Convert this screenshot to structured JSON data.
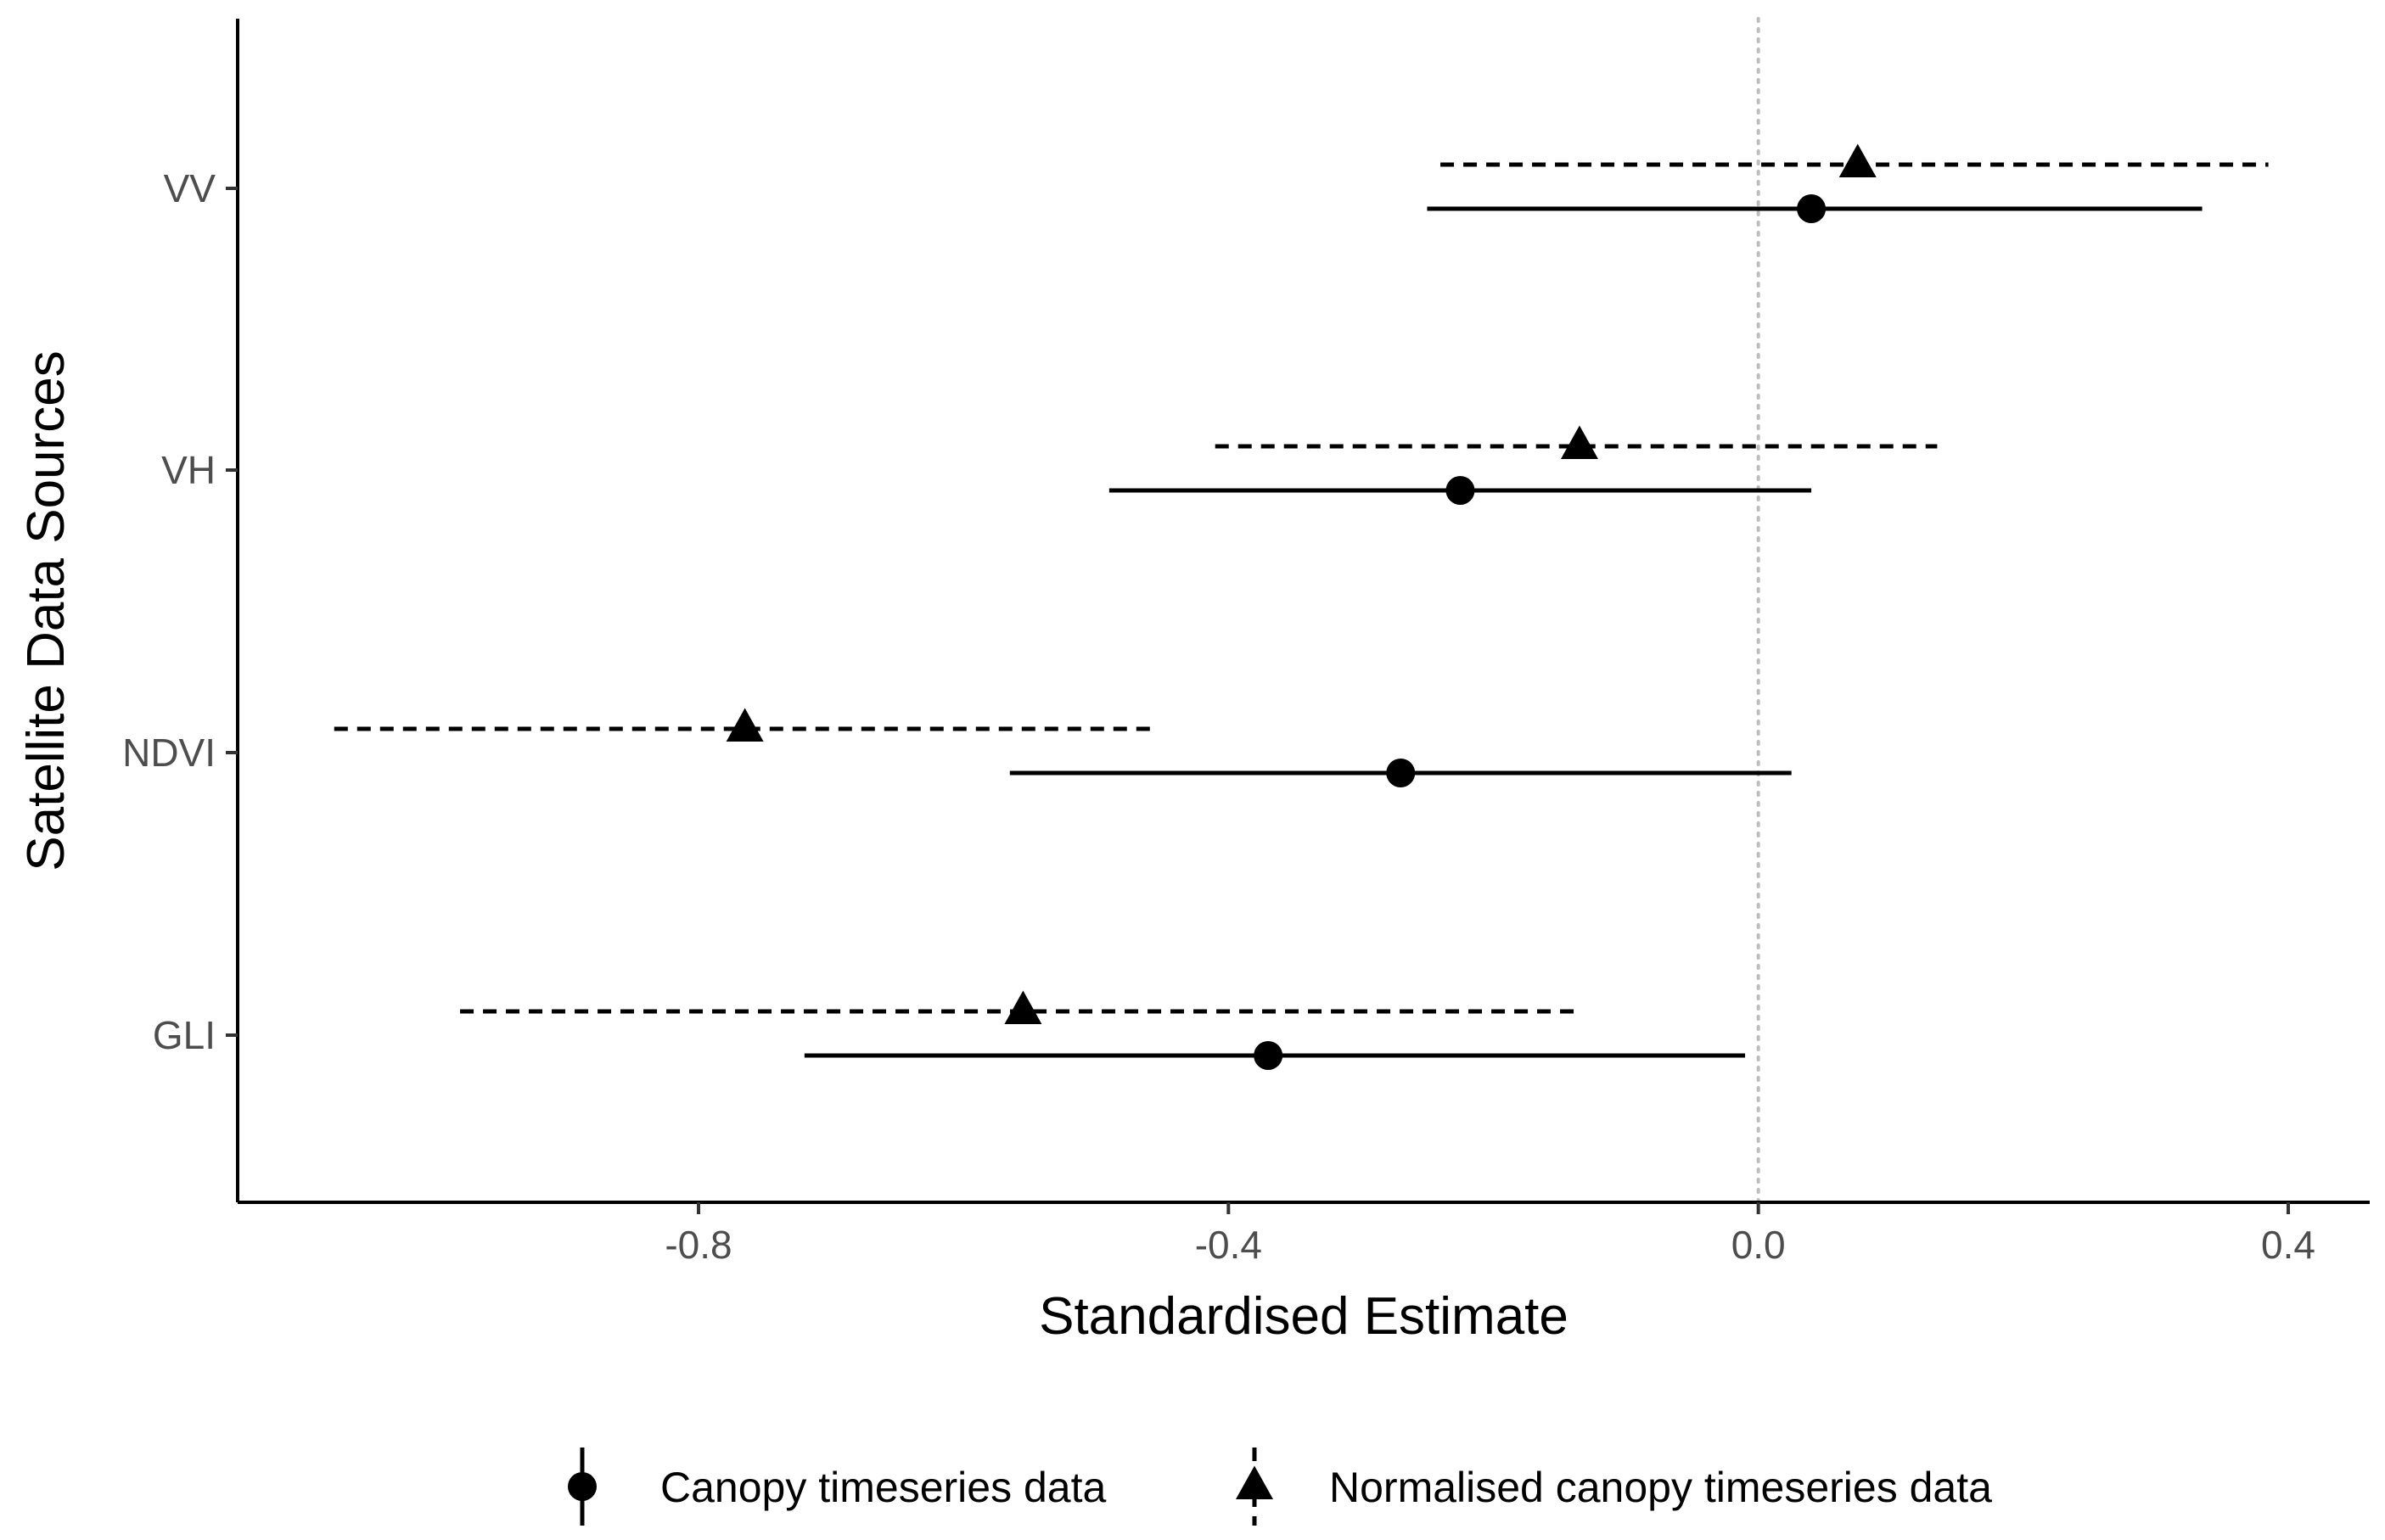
{
  "chart_data": {
    "type": "scatter",
    "subtype": "forest-plot",
    "title": "",
    "xlabel": "Standardised Estimate",
    "ylabel": "Satellite Data Sources",
    "xlim": [
      -1.15,
      0.46
    ],
    "x_ticks": [
      -0.8,
      -0.4,
      0.0,
      0.4
    ],
    "x_tick_labels": [
      "-0.8",
      "-0.4",
      "0.0",
      "0.4"
    ],
    "reference_line": 0.0,
    "categories": [
      "VV",
      "VH",
      "NDVI",
      "GLI"
    ],
    "grid": false,
    "legend_position": "bottom",
    "series": [
      {
        "name": "Canopy timeseries data",
        "marker": "circle",
        "line": "solid",
        "estimates": [
          0.04,
          -0.225,
          -0.27,
          -0.37
        ],
        "lower": [
          -0.25,
          -0.49,
          -0.565,
          -0.72
        ],
        "upper": [
          0.335,
          0.04,
          0.025,
          -0.01
        ]
      },
      {
        "name": "Normalised canopy timeseries data",
        "marker": "triangle",
        "line": "dashed",
        "estimates": [
          0.075,
          -0.135,
          -0.765,
          -0.555
        ],
        "lower": [
          -0.24,
          -0.41,
          -1.075,
          -0.98
        ],
        "upper": [
          0.385,
          0.135,
          -0.455,
          -0.135
        ]
      }
    ]
  }
}
